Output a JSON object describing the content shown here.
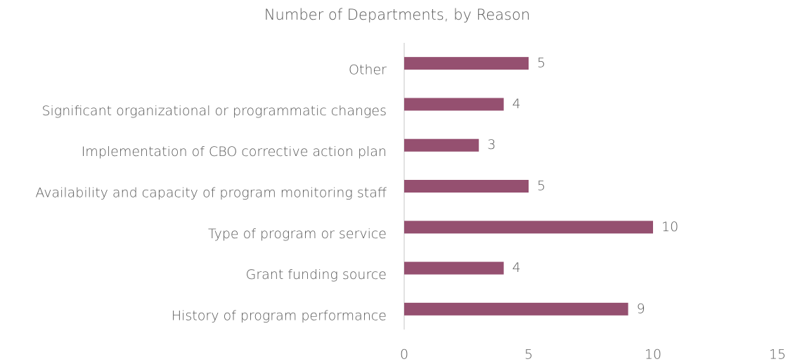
{
  "chart_data": {
    "type": "bar",
    "orientation": "horizontal",
    "title": "Number of Departments, by Reason",
    "categories": [
      "Other",
      "Significant organizational or programmatic changes",
      "Implementation of CBO corrective action plan",
      "Availability and capacity of program monitoring staff",
      "Type of program or service",
      "Grant funding source",
      "History of program performance"
    ],
    "values": [
      5,
      4,
      3,
      5,
      10,
      4,
      9
    ],
    "color": "#955070",
    "xlim": [
      0,
      15
    ],
    "xticks": [
      0,
      5,
      10,
      15
    ],
    "grid": false
  }
}
